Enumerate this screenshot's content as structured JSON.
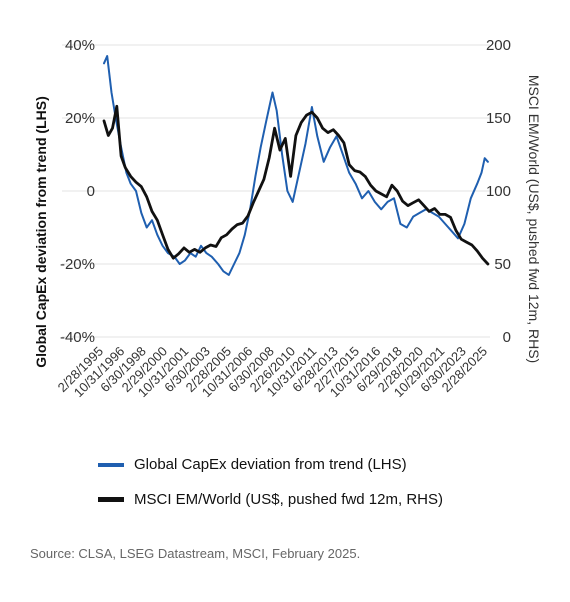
{
  "chart_data": {
    "type": "line",
    "title": "",
    "ylabel_left": "Global CapEx deviation from trend (LHS)",
    "ylabel_right": "MSCI EM/World (US$, pushed fwd 12m, RHS)",
    "ylim_left": [
      -40,
      40
    ],
    "ylim_right": [
      0,
      200
    ],
    "yticks_left": [
      "40%",
      "20%",
      "0",
      "-20%",
      "-40%"
    ],
    "yticks_right": [
      "200",
      "150",
      "100",
      "50",
      "0"
    ],
    "xlim": [
      "1995-02",
      "2025-04"
    ],
    "xticks": [
      "2/28/1995",
      "10/31/1996",
      "6/30/1998",
      "2/29/2000",
      "10/31/2001",
      "6/30/2003",
      "2/28/2005",
      "10/31/2006",
      "6/30/2008",
      "2/26/2010",
      "10/31/2011",
      "6/28/2013",
      "2/27/2015",
      "10/31/2016",
      "6/29/2018",
      "2/28/2020",
      "10/29/2021",
      "6/30/2023",
      "2/28/2025"
    ],
    "grid": true,
    "legend_position": "bottom",
    "series": [
      {
        "name": "Global CapEx deviation from trend (LHS)",
        "axis": "left",
        "color": "#1f5fb0",
        "x": [
          "1995-02",
          "1995-05",
          "1995-09",
          "1996-01",
          "1996-06",
          "1996-11",
          "1997-03",
          "1997-08",
          "1998-01",
          "1998-06",
          "1998-11",
          "1999-04",
          "1999-09",
          "2000-02",
          "2000-08",
          "2001-01",
          "2001-06",
          "2001-11",
          "2002-04",
          "2002-09",
          "2003-02",
          "2003-07",
          "2004-01",
          "2004-06",
          "2004-11",
          "2005-04",
          "2005-09",
          "2006-02",
          "2006-07",
          "2006-12",
          "2007-05",
          "2007-10",
          "2008-01",
          "2008-04",
          "2008-08",
          "2009-01",
          "2009-06",
          "2009-11",
          "2010-05",
          "2010-11",
          "2011-05",
          "2011-10",
          "2012-04",
          "2012-10",
          "2013-04",
          "2013-10",
          "2014-04",
          "2014-10",
          "2015-04",
          "2015-10",
          "2016-04",
          "2016-10",
          "2017-04",
          "2017-10",
          "2018-04",
          "2018-10",
          "2019-04",
          "2019-10",
          "2020-04",
          "2020-10",
          "2021-04",
          "2021-10",
          "2022-04",
          "2022-10",
          "2023-04",
          "2023-10",
          "2024-04",
          "2024-08",
          "2024-11",
          "2025-02"
        ],
        "values": [
          35,
          37,
          27,
          20,
          12,
          5,
          2,
          0,
          -6,
          -10,
          -8,
          -12,
          -15,
          -17,
          -18,
          -20,
          -19,
          -17,
          -18,
          -15,
          -17,
          -18,
          -20,
          -22,
          -23,
          -20,
          -17,
          -12,
          -5,
          4,
          12,
          19,
          23,
          27,
          22,
          10,
          0,
          -3,
          5,
          13,
          23,
          15,
          8,
          12,
          15,
          10,
          5,
          2,
          -2,
          0,
          -3,
          -5,
          -3,
          -2,
          -9,
          -10,
          -7,
          -6,
          -5,
          -6,
          -7,
          -9,
          -11,
          -13,
          -9,
          -2,
          2,
          5,
          9,
          8
        ]
      },
      {
        "name": "MSCI EM/World (US$, pushed fwd 12m, RHS)",
        "axis": "right",
        "color": "#111111",
        "x": [
          "1995-02",
          "1995-06",
          "1995-10",
          "1996-02",
          "1996-06",
          "1996-10",
          "1997-03",
          "1997-08",
          "1998-01",
          "1998-06",
          "1998-11",
          "1999-04",
          "1999-09",
          "2000-02",
          "2000-07",
          "2000-12",
          "2001-05",
          "2001-10",
          "2002-03",
          "2002-08",
          "2003-01",
          "2003-06",
          "2003-11",
          "2004-04",
          "2004-09",
          "2005-02",
          "2005-07",
          "2005-12",
          "2006-05",
          "2006-10",
          "2007-03",
          "2007-08",
          "2008-01",
          "2008-06",
          "2008-11",
          "2009-04",
          "2009-09",
          "2010-02",
          "2010-07",
          "2010-12",
          "2011-05",
          "2011-10",
          "2012-03",
          "2012-08",
          "2013-01",
          "2013-06",
          "2013-11",
          "2014-04",
          "2014-09",
          "2015-02",
          "2015-07",
          "2015-12",
          "2016-05",
          "2016-10",
          "2017-03",
          "2017-08",
          "2018-01",
          "2018-06",
          "2018-11",
          "2019-04",
          "2019-09",
          "2020-02",
          "2020-07",
          "2020-12",
          "2021-05",
          "2021-10",
          "2022-03",
          "2022-08",
          "2023-01",
          "2023-06",
          "2023-11",
          "2024-04",
          "2024-09",
          "2025-02"
        ],
        "values": [
          148,
          138,
          143,
          158,
          124,
          116,
          110,
          106,
          103,
          96,
          86,
          80,
          70,
          60,
          54,
          57,
          61,
          58,
          60,
          58,
          61,
          63,
          62,
          68,
          70,
          74,
          77,
          78,
          83,
          92,
          100,
          108,
          123,
          143,
          128,
          136,
          110,
          138,
          147,
          152,
          154,
          150,
          143,
          140,
          142,
          138,
          133,
          118,
          114,
          113,
          110,
          104,
          100,
          98,
          96,
          104,
          100,
          93,
          90,
          92,
          94,
          90,
          86,
          88,
          84,
          84,
          82,
          73,
          67,
          65,
          63,
          59,
          54,
          50
        ]
      }
    ]
  },
  "legend": {
    "item1": "Global CapEx deviation from trend (LHS)",
    "item2": "MSCI EM/World (US$, pushed fwd 12m, RHS)"
  },
  "source": "Source: CLSA, LSEG Datastream, MSCI, February 2025."
}
